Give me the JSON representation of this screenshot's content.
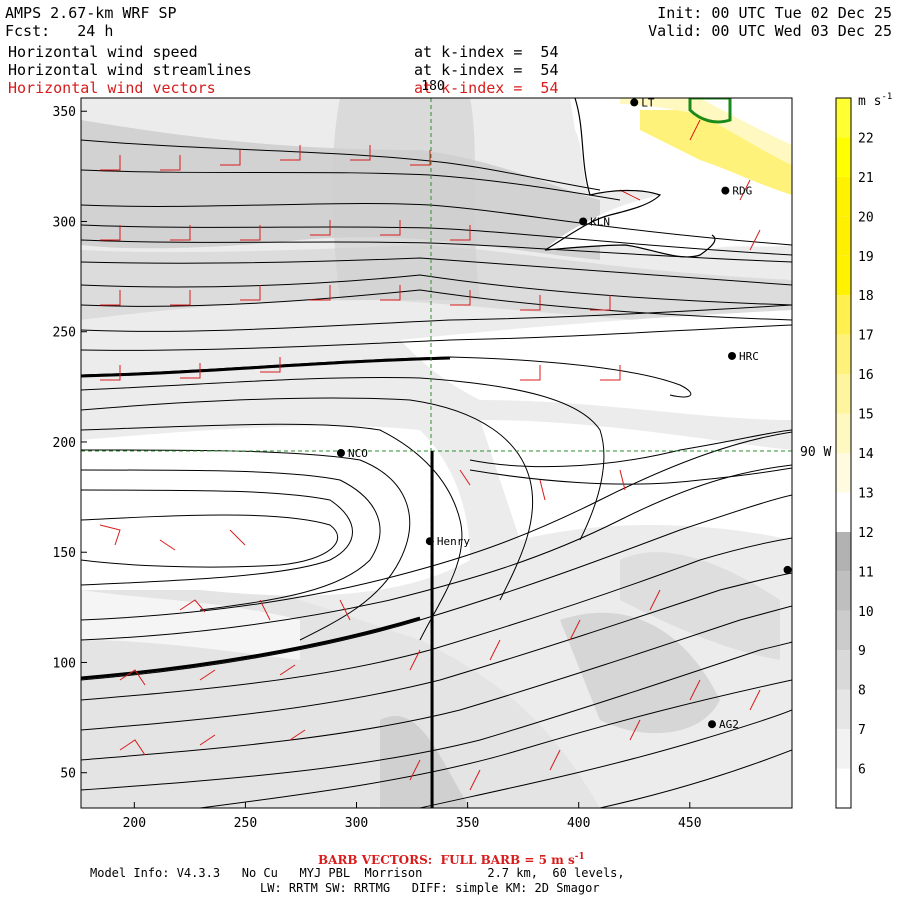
{
  "header": {
    "model": "AMPS 2.67-km WRF SP",
    "fcst": "Fcst:   24 h",
    "init": "Init: 00 UTC Tue 02 Dec 25",
    "valid": "Valid: 00 UTC Wed 03 Dec 25",
    "fields": [
      {
        "name": "Horizontal wind speed",
        "level": "at k-index =  54",
        "color": "#000000"
      },
      {
        "name": "Horizontal wind streamlines",
        "level": "at k-index =  54",
        "color": "#000000"
      },
      {
        "name": "Horizontal wind vectors",
        "level": "at k-index =  54",
        "color": "#d81c1c"
      }
    ]
  },
  "map": {
    "x_ticks": [
      "200",
      "250",
      "300",
      "350",
      "400",
      "450"
    ],
    "y_ticks": [
      "50",
      "100",
      "150",
      "200",
      "250",
      "300",
      "350"
    ],
    "x_range": [
      176,
      496
    ],
    "y_range": [
      34,
      356
    ],
    "meridian_label": "180",
    "parallel_label": "90 W",
    "cross_section_x": 334,
    "stations": [
      {
        "name": "LT",
        "x": 425,
        "y": 354
      },
      {
        "name": "RDG",
        "x": 466,
        "y": 314
      },
      {
        "name": "KLN",
        "x": 402,
        "y": 300
      },
      {
        "name": "HRC",
        "x": 469,
        "y": 239
      },
      {
        "name": "NCO",
        "x": 293,
        "y": 195
      },
      {
        "name": "Henry",
        "x": 333,
        "y": 155
      },
      {
        "name": "",
        "x": 494,
        "y": 142
      },
      {
        "name": "AG2",
        "x": 460,
        "y": 72
      }
    ]
  },
  "colorbar": {
    "unit": "m s",
    "unit_sup": "-1",
    "levels": [
      "6",
      "7",
      "8",
      "9",
      "10",
      "11",
      "12",
      "13",
      "14",
      "15",
      "16",
      "17",
      "18",
      "19",
      "20",
      "21",
      "22"
    ],
    "colors": [
      "#ffffff",
      "#f2f2f2",
      "#e6e6e6",
      "#d9d9d9",
      "#cccccc",
      "#bfbfbf",
      "#b2b2b2",
      "#ffffff",
      "#fffbe0",
      "#fff8c0",
      "#fff59e",
      "#fff27a",
      "#fff050",
      "#fff200",
      "#ffef00",
      "#fff200",
      "#ffff00",
      "#ffff33"
    ]
  },
  "footer": {
    "barb": "BARB VECTORS:  FULL BARB = 5 m s",
    "barb_sup": "-1",
    "line1": "Model Info: V4.3.3   No Cu   MYJ PBL  Morrison         2.7 km,  60 levels,",
    "line2": "LW: RRTM SW: RRTMG   DIFF: simple KM: 2D Smagor"
  }
}
